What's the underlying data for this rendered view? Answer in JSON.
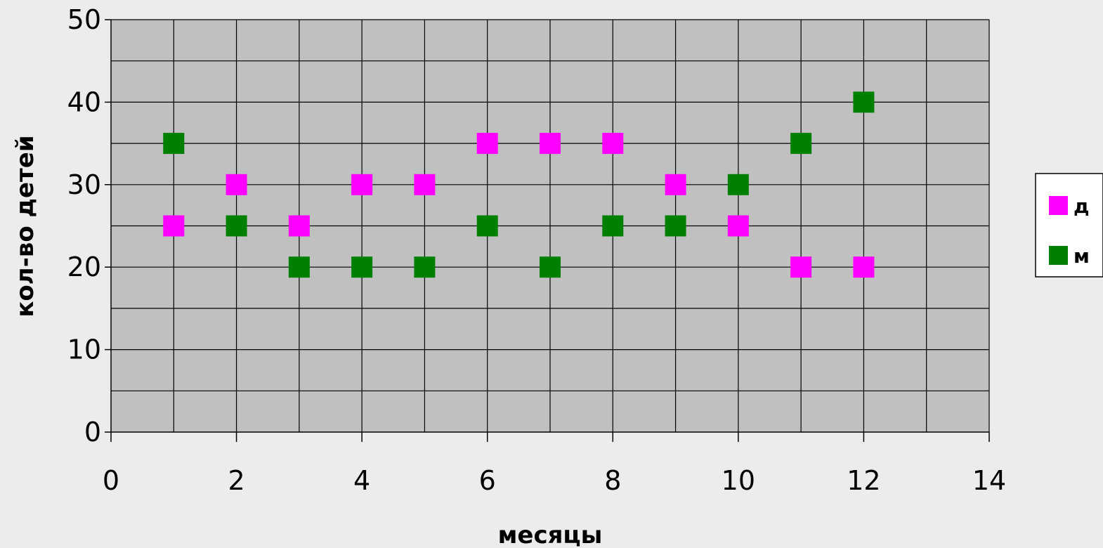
{
  "chart_data": {
    "type": "scatter",
    "title": "",
    "xlabel": "месяцы",
    "ylabel": "кол-во детей",
    "xlim": [
      0,
      14
    ],
    "ylim": [
      0,
      50
    ],
    "x_ticks": [
      0,
      2,
      4,
      6,
      8,
      10,
      12,
      14
    ],
    "y_ticks": [
      0,
      10,
      20,
      30,
      40,
      50
    ],
    "x_minor_step": 1,
    "y_minor_step": 5,
    "grid": true,
    "legend_position": "right",
    "plot_background": "#c0c0c0",
    "series": [
      {
        "name": "д",
        "color": "#ff00ff",
        "marker": "square",
        "x": [
          1,
          2,
          3,
          4,
          5,
          6,
          7,
          8,
          9,
          10,
          11,
          12
        ],
        "y": [
          25,
          30,
          25,
          30,
          30,
          35,
          35,
          35,
          30,
          25,
          20,
          20
        ]
      },
      {
        "name": "м",
        "color": "#008000",
        "marker": "square",
        "x": [
          1,
          2,
          3,
          4,
          5,
          6,
          7,
          8,
          9,
          10,
          11,
          12
        ],
        "y": [
          35,
          25,
          20,
          20,
          20,
          25,
          20,
          25,
          25,
          30,
          35,
          40
        ]
      }
    ]
  }
}
